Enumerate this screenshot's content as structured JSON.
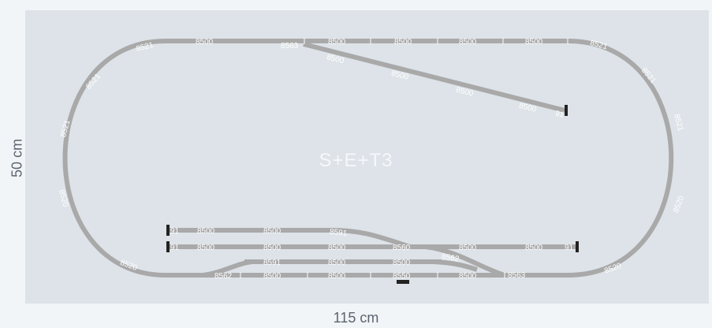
{
  "layout": {
    "title": "S+E+T3",
    "width_label": "115 cm",
    "height_label": "50 cm"
  },
  "colors": {
    "track": "#a9a9a9",
    "track_edge": "#8f8f8f",
    "board": "#dde3e8",
    "buffer": "#222222",
    "label": "#ffffff"
  },
  "track_labels": {
    "top": [
      "8521",
      "8500",
      "8563",
      "8500",
      "8500",
      "8500",
      "8500",
      "8521"
    ],
    "siding_top": [
      "8500",
      "8500",
      "8500",
      "8500",
      "91"
    ],
    "left_curve": [
      "8521",
      "8521",
      "8520",
      "8520"
    ],
    "right_curve": [
      "8521",
      "8521",
      "8520",
      "8520"
    ],
    "yard_row1": [
      "91",
      "8500",
      "8500",
      "8591"
    ],
    "yard_row2": [
      "91",
      "8500",
      "8500",
      "8500",
      "8560",
      "8500",
      "8500",
      "91"
    ],
    "yard_row3": [
      "8591",
      "8500",
      "8500",
      "8562"
    ],
    "yard_row4": [
      "8562",
      "8500",
      "8500",
      "8550",
      "8500",
      "8563"
    ]
  }
}
